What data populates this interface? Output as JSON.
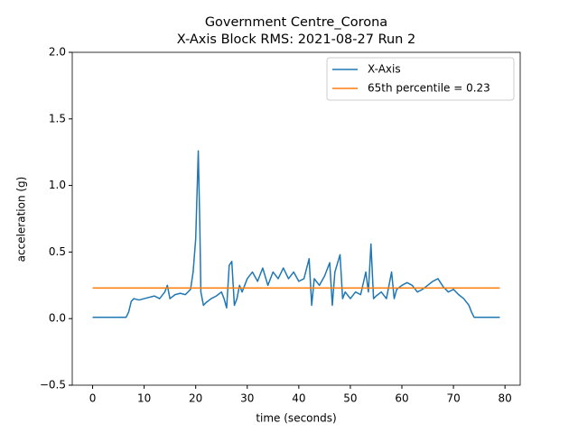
{
  "chart_data": {
    "type": "line",
    "title": "Government Centre_Corona",
    "subtitle": "X-Axis Block RMS: 2021-08-27 Run 2",
    "x_label": "time (seconds)",
    "y_label": "acceleration (g)",
    "xlim": [
      -3.95,
      82.95
    ],
    "ylim": [
      -0.5,
      2.0
    ],
    "xticks": [
      0,
      10,
      20,
      30,
      40,
      50,
      60,
      70,
      80
    ],
    "yticks": [
      {
        "value": -0.5,
        "label": "−0.5"
      },
      {
        "value": 0.0,
        "label": "0.0"
      },
      {
        "value": 0.5,
        "label": "0.5"
      },
      {
        "value": 1.0,
        "label": "1.0"
      },
      {
        "value": 1.5,
        "label": "1.5"
      },
      {
        "value": 2.0,
        "label": "2.0"
      }
    ],
    "legend": "upper right",
    "series": [
      {
        "name": "X-Axis",
        "color": "#1f77b4",
        "x": [
          0,
          6.5,
          7,
          7.5,
          8,
          9,
          10,
          11,
          12,
          13,
          14,
          14.5,
          15,
          16,
          17,
          18,
          19,
          19.5,
          20,
          20.5,
          20.8,
          21,
          21.5,
          22,
          23,
          24,
          25,
          25.5,
          26,
          26.5,
          27,
          27.5,
          28,
          28.5,
          29,
          30,
          31,
          32,
          33,
          34,
          35,
          36,
          37,
          38,
          39,
          40,
          41,
          42,
          42.5,
          43,
          44,
          45,
          46,
          46.5,
          47,
          48,
          48.5,
          49,
          50,
          51,
          52,
          53,
          53.5,
          54,
          54.5,
          55,
          56,
          57,
          58,
          58.5,
          59,
          60,
          61,
          62,
          63,
          64,
          65,
          66,
          67,
          68,
          69,
          70,
          71,
          72,
          73,
          73.5,
          74,
          79
        ],
        "values": [
          0.01,
          0.01,
          0.05,
          0.13,
          0.15,
          0.14,
          0.15,
          0.16,
          0.17,
          0.15,
          0.2,
          0.25,
          0.15,
          0.18,
          0.19,
          0.18,
          0.22,
          0.35,
          0.6,
          1.26,
          0.7,
          0.2,
          0.1,
          0.12,
          0.15,
          0.17,
          0.2,
          0.15,
          0.08,
          0.4,
          0.43,
          0.1,
          0.15,
          0.25,
          0.2,
          0.3,
          0.35,
          0.28,
          0.38,
          0.25,
          0.35,
          0.3,
          0.38,
          0.3,
          0.35,
          0.28,
          0.3,
          0.45,
          0.1,
          0.3,
          0.25,
          0.32,
          0.42,
          0.1,
          0.35,
          0.48,
          0.15,
          0.2,
          0.15,
          0.2,
          0.18,
          0.35,
          0.2,
          0.56,
          0.15,
          0.17,
          0.2,
          0.15,
          0.35,
          0.15,
          0.22,
          0.25,
          0.27,
          0.25,
          0.2,
          0.22,
          0.25,
          0.28,
          0.3,
          0.24,
          0.2,
          0.22,
          0.18,
          0.15,
          0.1,
          0.05,
          0.01,
          0.01
        ]
      },
      {
        "name": "65th percentile = 0.23",
        "color": "#ff7f0e",
        "x": [
          0,
          79
        ],
        "values": [
          0.23,
          0.23
        ]
      }
    ]
  }
}
